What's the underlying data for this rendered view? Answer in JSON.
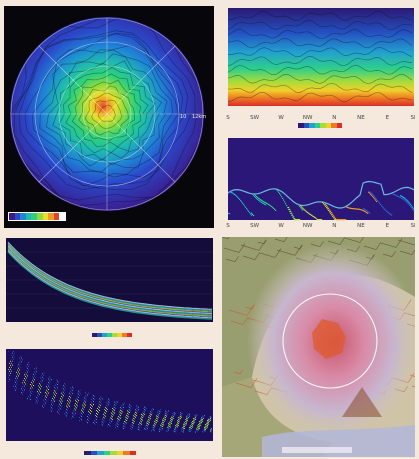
{
  "chart_data": [
    {
      "type": "heatmap",
      "name": "polar-viewshed",
      "annotations": [
        "10",
        "12km"
      ],
      "colorbar": {
        "colors": [
          "#3b1b8c",
          "#2a49c9",
          "#1f86d6",
          "#1fbab0",
          "#2ed17a",
          "#8fdc3e",
          "#e6e02b",
          "#f29a22",
          "#e0472a",
          "#ffffff"
        ]
      }
    },
    {
      "type": "heatmap",
      "name": "direction-profile-top",
      "x_ticks": [
        "S",
        "SW",
        "W",
        "NW",
        "N",
        "NE",
        "E",
        "SE"
      ],
      "colorbar": {
        "colors": [
          "#2b1a73",
          "#2450c0",
          "#22a0d0",
          "#2ecf8a",
          "#a6dc3a",
          "#f0d02a",
          "#ee7a22",
          "#d92e2a"
        ]
      }
    },
    {
      "type": "heatmap",
      "name": "direction-profile-bottom",
      "x_ticks": [
        "S",
        "SW",
        "W",
        "NW",
        "N",
        "NE",
        "E",
        "SE"
      ]
    },
    {
      "type": "line",
      "name": "distance-decay-lines",
      "colorbar": {
        "colors": [
          "#2b1a73",
          "#2450c0",
          "#22a0d0",
          "#2ecf8a",
          "#a6dc3a",
          "#f0d02a",
          "#ee7a22",
          "#d92e2a"
        ]
      }
    },
    {
      "type": "scatter",
      "name": "distance-decay-density",
      "colorbar": {
        "colors": [
          "#2b1a73",
          "#2450c0",
          "#22a0d0",
          "#2ecf8a",
          "#a6dc3a",
          "#f0d02a",
          "#ee7a22",
          "#d92e2a"
        ]
      }
    }
  ],
  "map": {
    "kind": "relief-map"
  },
  "colors": {
    "background": "#f4e9dc",
    "dark": "#06060b",
    "accent": "#e85a2b"
  }
}
